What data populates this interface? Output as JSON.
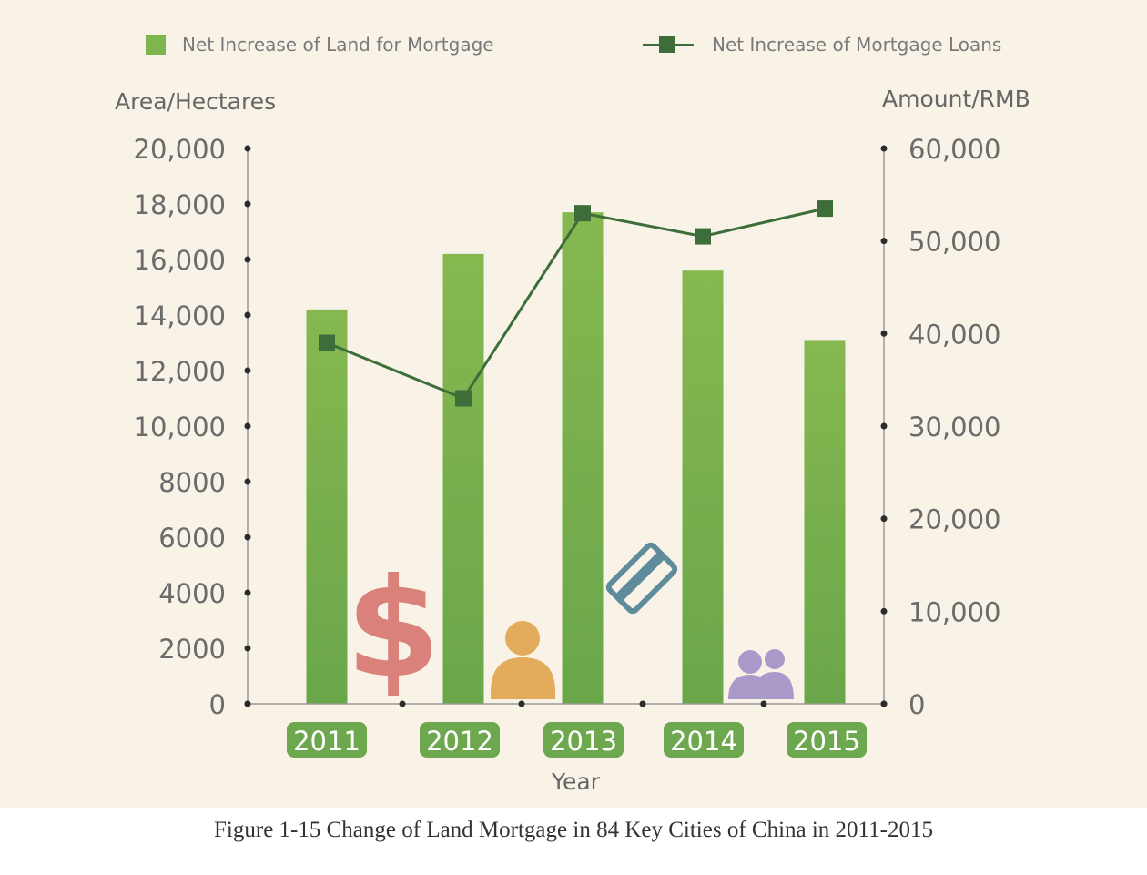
{
  "legend": {
    "bar_label": "Net Increase of Land for Mortgage",
    "line_label": "Net Increase of Mortgage Loans"
  },
  "axis_titles": {
    "left": "Area/Hectares",
    "right": "Amount/RMB",
    "x": "Year"
  },
  "caption": "Figure 1-15 Change of Land Mortgage in 84 Key Cities of China in 2011-2015",
  "colors": {
    "background": "#f8f3e6",
    "bar_top": "#86b850",
    "bar_bottom": "#6aa64a",
    "line": "#3d6e3a",
    "year_badge": "#6ea84e",
    "dollar_icon": "#d9817a",
    "person_icon": "#e3ab5c",
    "card_icon": "#5f8c9c",
    "group_icon": "#a99ac9"
  },
  "icons": [
    "dollar-icon",
    "person-icon",
    "credit-card-icon",
    "group-icon"
  ],
  "chart_data": {
    "type": "bar",
    "categories": [
      "2011",
      "2012",
      "2013",
      "2014",
      "2015"
    ],
    "series": [
      {
        "name": "Net Increase of Land for Mortgage",
        "type": "bar",
        "axis": "left",
        "values": [
          14200,
          16200,
          17700,
          15600,
          13100
        ]
      },
      {
        "name": "Net Increase of Mortgage Loans",
        "type": "line",
        "axis": "right",
        "values": [
          39000,
          33000,
          53000,
          50500,
          53500
        ]
      }
    ],
    "y_left": {
      "label": "Area/Hectares",
      "ticks": [
        0,
        2000,
        4000,
        6000,
        8000,
        10000,
        12000,
        14000,
        16000,
        18000,
        20000
      ],
      "tick_labels": [
        "0",
        "2000",
        "4000",
        "6000",
        "8000",
        "10,000",
        "12,000",
        "14,000",
        "16,000",
        "18,000",
        "20,000"
      ],
      "range": [
        0,
        20000
      ]
    },
    "y_right": {
      "label": "Amount/RMB",
      "ticks": [
        0,
        10000,
        20000,
        30000,
        40000,
        50000,
        60000
      ],
      "tick_labels": [
        "0",
        "10,000",
        "20,000",
        "30,000",
        "40,000",
        "50,000",
        "60,000"
      ],
      "range": [
        0,
        60000
      ]
    },
    "xlabel": "Year",
    "grid": false,
    "legend_position": "top"
  }
}
